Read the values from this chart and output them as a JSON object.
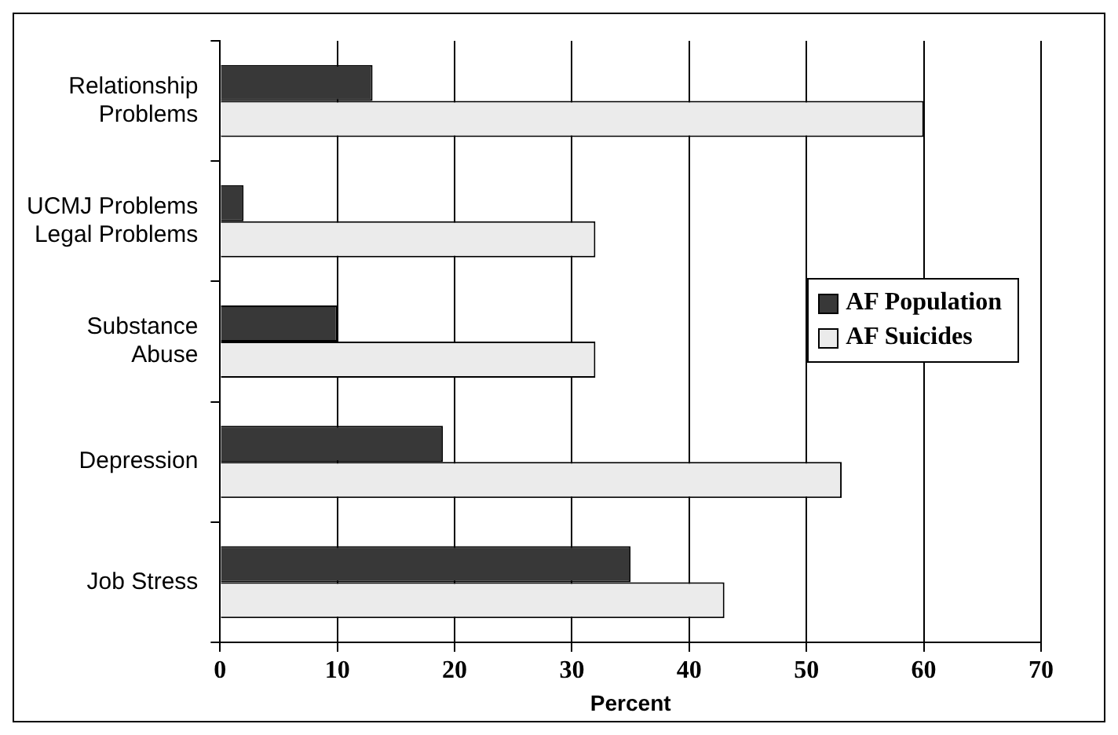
{
  "chart_data": {
    "type": "bar",
    "orientation": "horizontal",
    "xlabel": "Percent",
    "categories": [
      "Relationship\nProblems",
      "UCMJ Problems\nLegal Problems",
      "Substance\nAbuse",
      "Depression",
      "Job Stress"
    ],
    "series": [
      {
        "name": "AF Population",
        "color": "#383838",
        "values": [
          13,
          2,
          10,
          19,
          35
        ]
      },
      {
        "name": "AF Suicides",
        "color": "#ebebeb",
        "values": [
          60,
          32,
          32,
          53,
          43
        ]
      }
    ],
    "xlim": [
      0,
      70
    ],
    "xticks": [
      0,
      10,
      20,
      30,
      40,
      50,
      60,
      70
    ],
    "grid": "x",
    "legend": "right"
  }
}
